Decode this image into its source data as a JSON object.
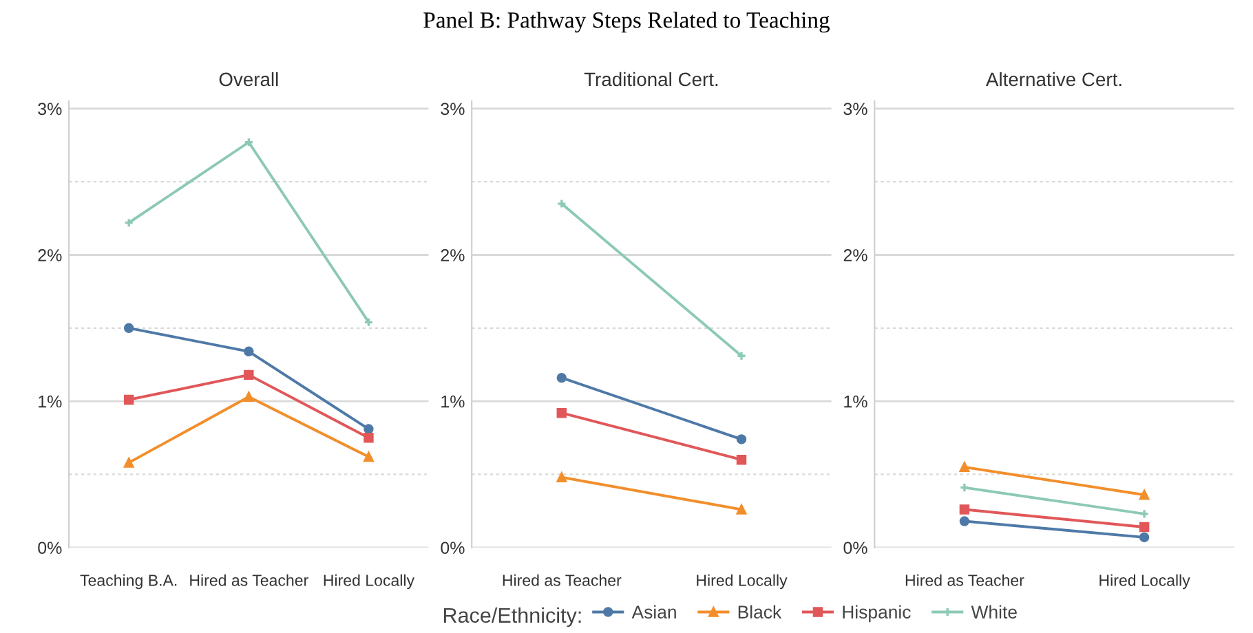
{
  "chart_data": [
    {
      "type": "line",
      "title": "Overall",
      "annotations": [
        "Panel B: Pathway Steps Related to Teaching"
      ],
      "legend_title": "Race/Ethnicity:",
      "legend": "bottom",
      "grid": "y",
      "categories": [
        "Teaching B.A.",
        "Hired as Teacher",
        "Hired Locally"
      ],
      "ylim": [
        0,
        3.05
      ],
      "yticks": [
        {
          "value": 0,
          "label": "0%"
        },
        {
          "value": 0.5,
          "label": null
        },
        {
          "value": 1,
          "label": "1%"
        },
        {
          "value": 1.5,
          "label": null
        },
        {
          "value": 2,
          "label": "2%"
        },
        {
          "value": 2.5,
          "label": null
        },
        {
          "value": 3,
          "label": "3%"
        }
      ],
      "series": [
        {
          "name": "Asian",
          "color": "#4e79a7",
          "marker": "circle",
          "values": [
            1.5,
            1.34,
            0.81
          ]
        },
        {
          "name": "Black",
          "color": "#f28e2b",
          "marker": "triangle",
          "values": [
            0.58,
            1.03,
            0.62
          ]
        },
        {
          "name": "Hispanic",
          "color": "#e15759",
          "marker": "square",
          "values": [
            1.01,
            1.18,
            0.75
          ]
        },
        {
          "name": "White",
          "color": "#8cc9b6",
          "marker": "cross",
          "values": [
            2.22,
            2.77,
            1.54
          ]
        }
      ]
    },
    {
      "type": "line",
      "title": "Traditional Cert.",
      "grid": "y",
      "categories": [
        "Hired as Teacher",
        "Hired Locally"
      ],
      "ylim": [
        0,
        3.05
      ],
      "yticks": [
        {
          "value": 0,
          "label": "0%"
        },
        {
          "value": 0.5,
          "label": null
        },
        {
          "value": 1,
          "label": "1%"
        },
        {
          "value": 1.5,
          "label": null
        },
        {
          "value": 2,
          "label": "2%"
        },
        {
          "value": 2.5,
          "label": null
        },
        {
          "value": 3,
          "label": "3%"
        }
      ],
      "series": [
        {
          "name": "Asian",
          "color": "#4e79a7",
          "marker": "circle",
          "values": [
            1.16,
            0.74
          ]
        },
        {
          "name": "Black",
          "color": "#f28e2b",
          "marker": "triangle",
          "values": [
            0.48,
            0.26
          ]
        },
        {
          "name": "Hispanic",
          "color": "#e15759",
          "marker": "square",
          "values": [
            0.92,
            0.6
          ]
        },
        {
          "name": "White",
          "color": "#8cc9b6",
          "marker": "cross",
          "values": [
            2.35,
            1.31
          ]
        }
      ]
    },
    {
      "type": "line",
      "title": "Alternative Cert.",
      "grid": "y",
      "categories": [
        "Hired as Teacher",
        "Hired Locally"
      ],
      "ylim": [
        0,
        3.05
      ],
      "yticks": [
        {
          "value": 0,
          "label": "0%"
        },
        {
          "value": 0.5,
          "label": null
        },
        {
          "value": 1,
          "label": "1%"
        },
        {
          "value": 1.5,
          "label": null
        },
        {
          "value": 2,
          "label": "2%"
        },
        {
          "value": 2.5,
          "label": null
        },
        {
          "value": 3,
          "label": "3%"
        }
      ],
      "series": [
        {
          "name": "Asian",
          "color": "#4e79a7",
          "marker": "circle",
          "values": [
            0.18,
            0.07
          ]
        },
        {
          "name": "Black",
          "color": "#f28e2b",
          "marker": "triangle",
          "values": [
            0.55,
            0.36
          ]
        },
        {
          "name": "Hispanic",
          "color": "#e15759",
          "marker": "square",
          "values": [
            0.26,
            0.14
          ]
        },
        {
          "name": "White",
          "color": "#8cc9b6",
          "marker": "cross",
          "values": [
            0.41,
            0.23
          ]
        }
      ]
    }
  ]
}
